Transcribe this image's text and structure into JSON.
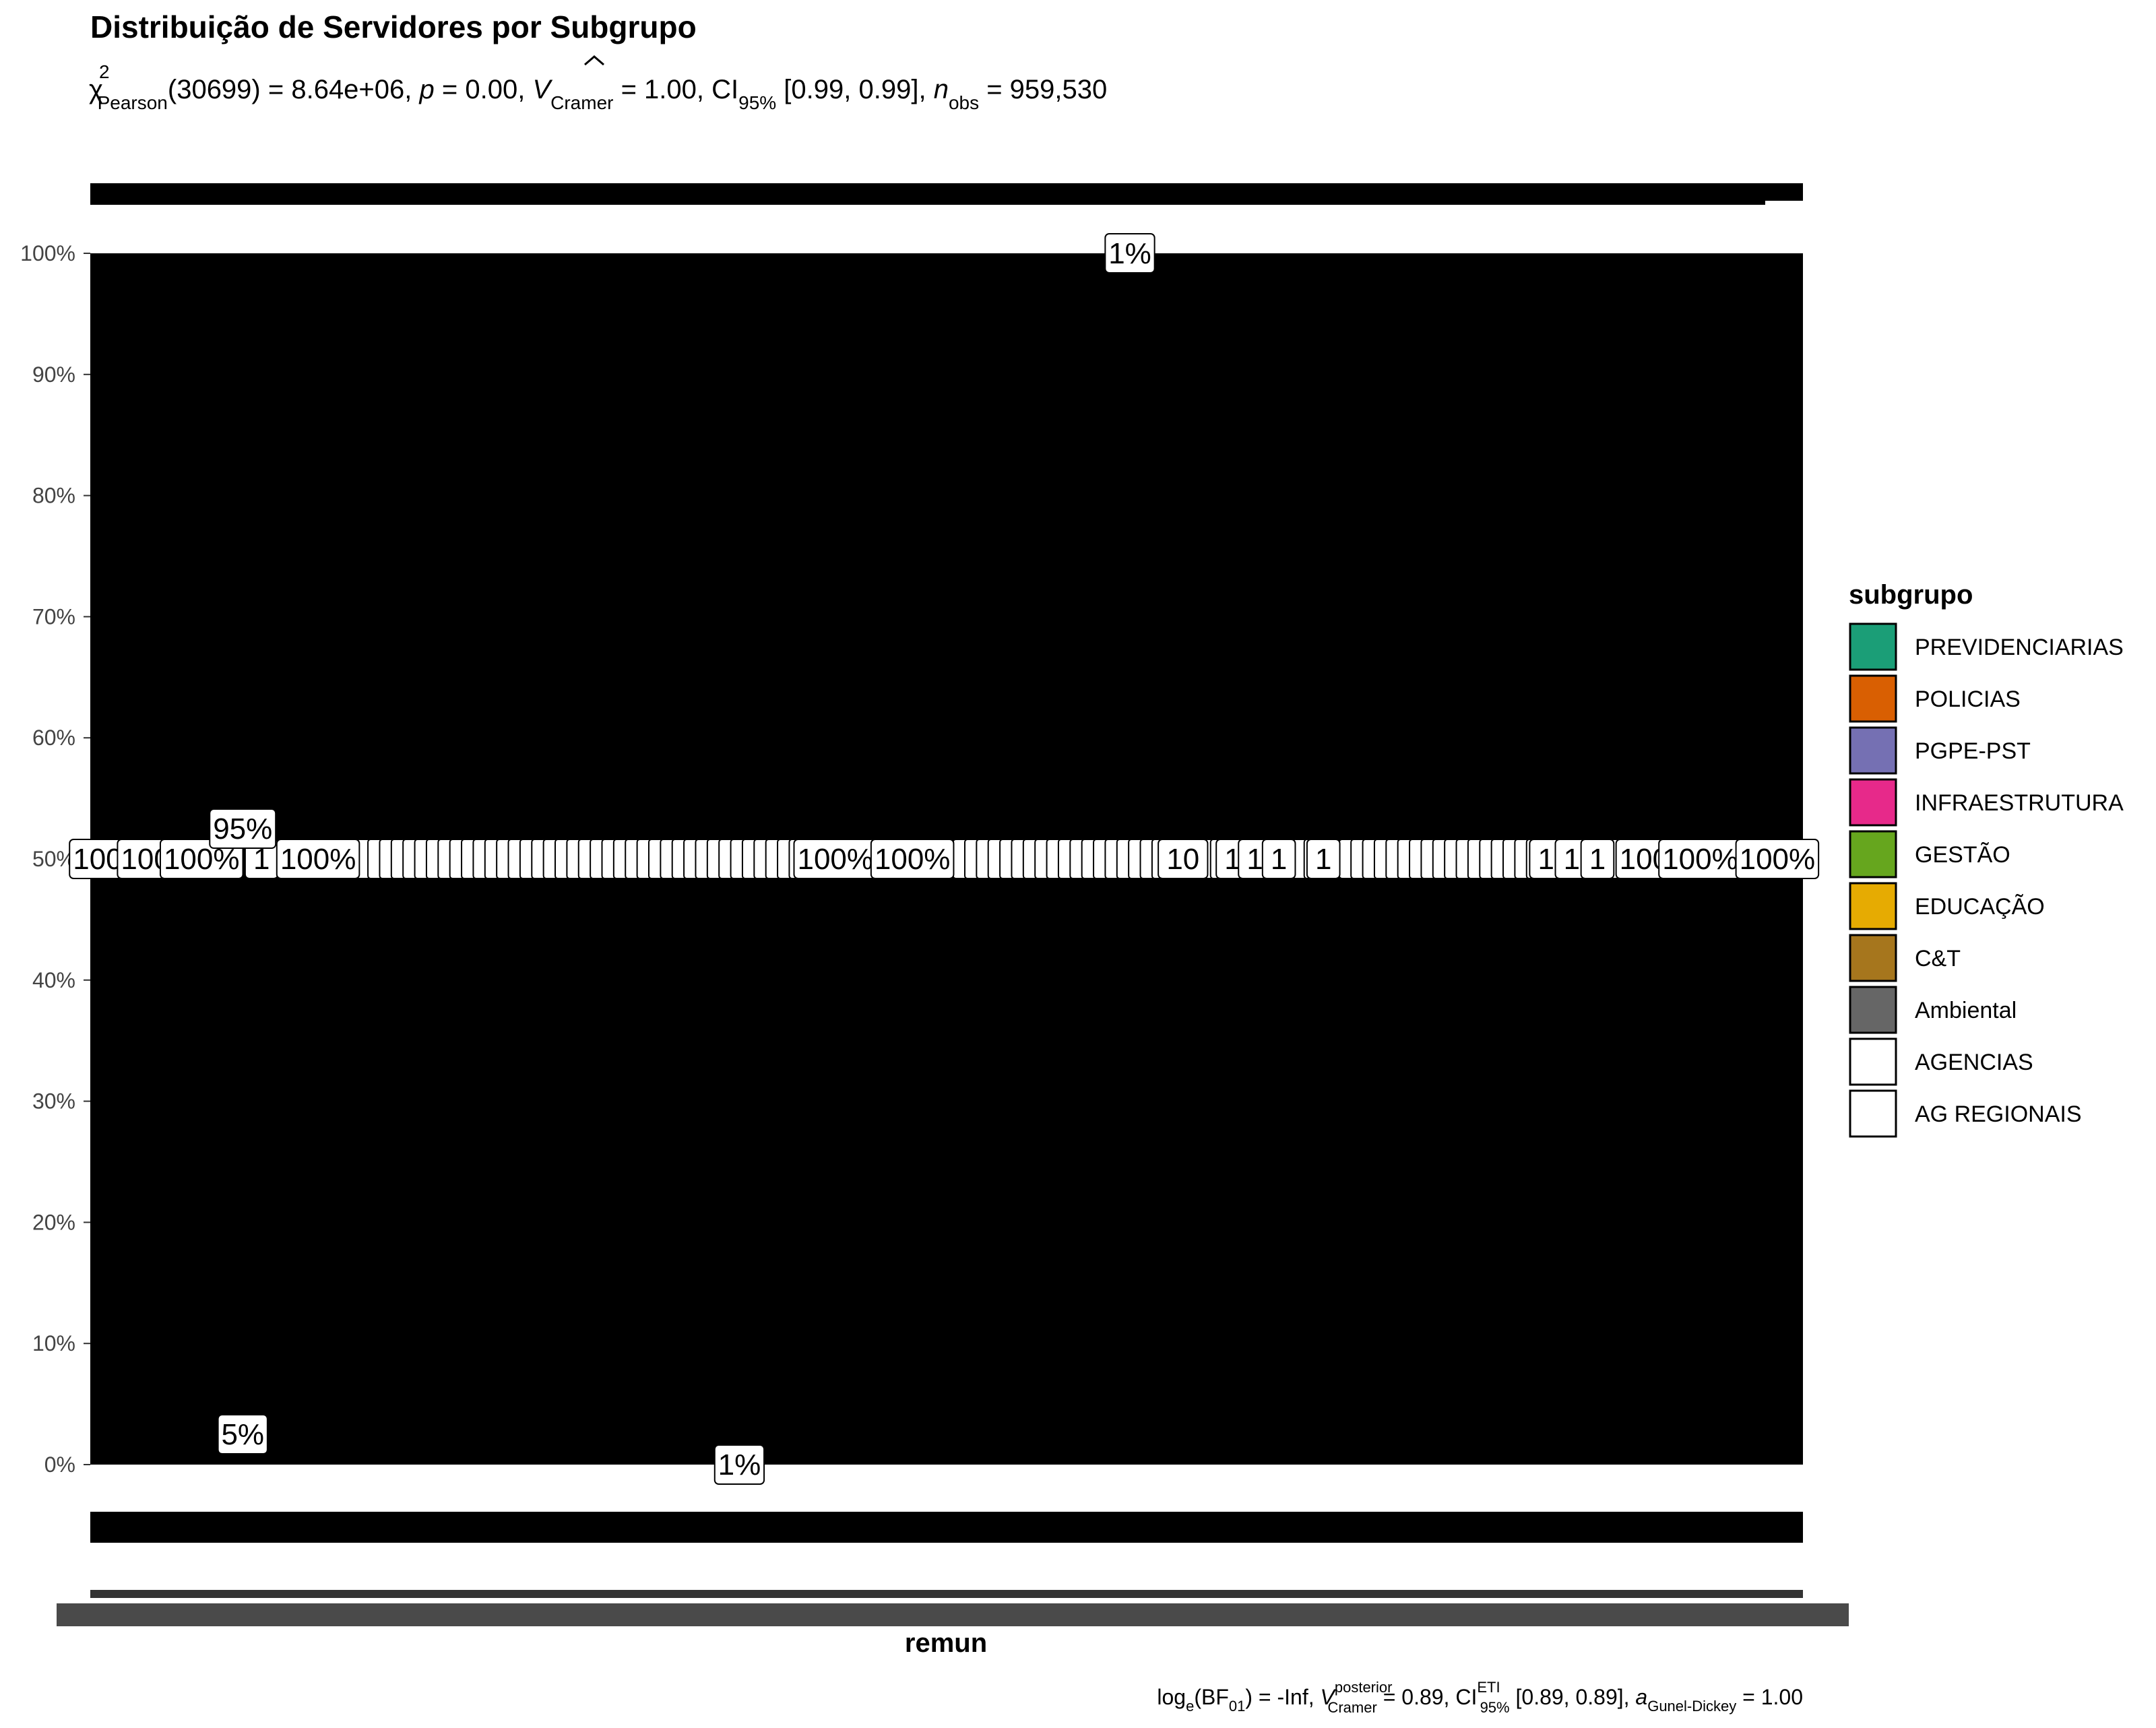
{
  "chart_data": {
    "type": "bar",
    "title": "Distribuição de Servidores por Subgrupo",
    "subtitle": {
      "chi": "χ",
      "chi_sup": "2",
      "chi_sub": "Pearson",
      "df_text": "(30699) = 8.64e+06, ",
      "p_symbol": "p",
      "p_text": " = 0.00, ",
      "v_symbol": "V",
      "v_sub": "Cramer",
      "v_text": " = 1.00, CI",
      "ci_sub": "95%",
      "ci_text": " [0.99, 0.99], ",
      "n_symbol": "n",
      "n_sub": "obs",
      "n_text": " = 959,530"
    },
    "caption": {
      "log": "log",
      "log_sub": "e",
      "bf": "(BF",
      "bf_sub": "01",
      "bf_text": ") = -Inf, ",
      "v_symbol": "V",
      "v_sup": "posterior",
      "v_sub": "Cramer",
      "v_text": " = 0.89, CI",
      "ci_sup": "ETI",
      "ci_sub": "95%",
      "ci_text": " [0.89, 0.89], ",
      "a_symbol": "a",
      "a_sub": "Gunel-Dickey",
      "a_text": " = 1.00"
    },
    "xlabel": "remun",
    "ylabel": "",
    "ylim": [
      0,
      1
    ],
    "y_ticks": [
      0,
      0.1,
      0.2,
      0.3,
      0.4,
      0.5,
      0.6,
      0.7,
      0.8,
      0.9,
      1.0
    ],
    "y_tick_labels": [
      "0%",
      "10%",
      "20%",
      "30%",
      "40%",
      "50%",
      "60%",
      "70%",
      "80%",
      "90%",
      "100%"
    ],
    "grid": false,
    "fill_note": "all bars rendered solid black (overplotted)",
    "legend": {
      "title": "subgrupo",
      "placement": "right",
      "entries": [
        {
          "label": "PREVIDENCIARIAS",
          "color": "#1B9E77"
        },
        {
          "label": "POLICIAS",
          "color": "#D95F02"
        },
        {
          "label": "PGPE-PST",
          "color": "#7570B3"
        },
        {
          "label": "INFRAESTRUTURA",
          "color": "#E7298A"
        },
        {
          "label": "GESTÃO",
          "color": "#66A61E"
        },
        {
          "label": "EDUCAÇÃO",
          "color": "#E6AB02"
        },
        {
          "label": "C&T",
          "color": "#A6761D"
        },
        {
          "label": "Ambiental",
          "color": "#666666"
        },
        {
          "label": "AGENCIAS",
          "color": "#FFFFFF"
        },
        {
          "label": "AG REGIONAIS",
          "color": "#FFFFFF"
        }
      ]
    },
    "labels_50": [
      {
        "text": "100%",
        "x": 0.012
      },
      {
        "text": "100%",
        "x": 0.04
      },
      {
        "text": "100%",
        "x": 0.065
      },
      {
        "text": "1",
        "x": 0.1
      },
      {
        "text": "100%",
        "x": 0.133
      },
      {
        "text": "100%",
        "x": 0.435
      },
      {
        "text": "100%",
        "x": 0.48
      },
      {
        "text": "10",
        "x": 0.638
      },
      {
        "text": "1",
        "x": 0.667
      },
      {
        "text": "1",
        "x": 0.68
      },
      {
        "text": "1",
        "x": 0.694
      },
      {
        "text": "1",
        "x": 0.72
      },
      {
        "text": "1",
        "x": 0.85
      },
      {
        "text": "1",
        "x": 0.865
      },
      {
        "text": "1",
        "x": 0.88
      },
      {
        "text": "100%",
        "x": 0.915
      },
      {
        "text": "100%",
        "x": 0.94
      },
      {
        "text": "100%",
        "x": 0.985
      }
    ],
    "labels_other": [
      {
        "text": "1%",
        "x": 0.607,
        "y": 1.0
      },
      {
        "text": "95%",
        "x": 0.089,
        "y": 0.525
      },
      {
        "text": "5%",
        "x": 0.089,
        "y": 0.025
      },
      {
        "text": "1%",
        "x": 0.379,
        "y": 0.0
      }
    ]
  }
}
